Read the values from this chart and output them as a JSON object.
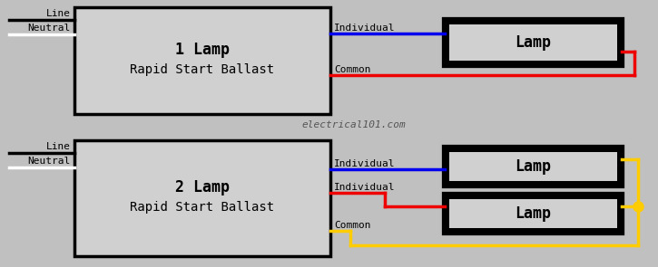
{
  "bg_color": "#c0c0c0",
  "ballast_fill": "#d0d0d0",
  "ballast_edge": "#000000",
  "lamp_fill": "#d0d0d0",
  "lamp_edge": "#000000",
  "wire_blue": "#0000ee",
  "wire_red": "#ee0000",
  "wire_yellow": "#ffcc00",
  "wire_black": "#000000",
  "wire_white": "#ffffff",
  "text_color": "#000000",
  "watermark": "electrical101.com",
  "watermark_color": "#555555",
  "line_label": "Line",
  "neutral_label": "Neutral",
  "d1_label1": "1 Lamp",
  "d1_label2": "Rapid Start Ballast",
  "d1_wire1": "Individual",
  "d1_wire2": "Common",
  "d1_lamp": "Lamp",
  "d2_label1": "2 Lamp",
  "d2_label2": "Rapid Start Ballast",
  "d2_wire1": "Individual",
  "d2_wire2": "Individual",
  "d2_wire3": "Common",
  "d2_lamp": "Lamp",
  "fig_w": 7.25,
  "fig_h": 2.95,
  "dpi": 100
}
